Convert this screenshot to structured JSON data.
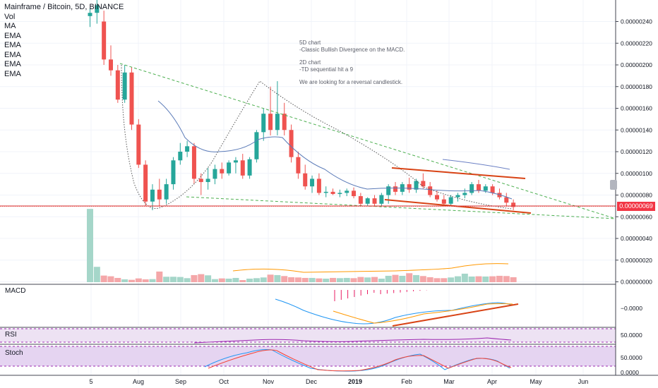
{
  "legend": {
    "title": "Mainframe / Bitcoin, 5D, BINANCE",
    "indicators": [
      "Vol",
      "MA",
      "EMA",
      "EMA",
      "EMA",
      "EMA",
      "EMA"
    ]
  },
  "annotation": {
    "line1": "5D chart",
    "line2": "-Classic Bullish Divergence on the MACD.",
    "line3": "2D chart",
    "line4": "-TD sequential hit a 9",
    "line5": "We are looking for a reversal candlestick."
  },
  "panes": {
    "macd": "MACD",
    "rsi": "RSI",
    "stoch": "Stoch"
  },
  "price_axis": {
    "ticks": [
      "0.00000240",
      "0.00000220",
      "0.00000200",
      "0.00000180",
      "0.00000160",
      "0.00000140",
      "0.00000120",
      "0.00000100",
      "0.00000080",
      "0.00000060",
      "0.00000040",
      "0.00000020",
      "0.00000000"
    ],
    "last_price": "0.00000069",
    "macd_tick": "−0.0000",
    "rsi_tick": "50.0000",
    "stoch_ticks": [
      "50.0000",
      "0.0000"
    ]
  },
  "time_axis": [
    "5",
    "Aug",
    "Sep",
    "Oct",
    "Nov",
    "Dec",
    "2019",
    "Feb",
    "Mar",
    "Apr",
    "May",
    "Jun"
  ],
  "colors": {
    "up": "#26a69a",
    "down": "#ef5350",
    "trend_green": "#4caf50",
    "trend_red": "#d84315",
    "ma_blue": "#2962ff",
    "pane_fill": "#e1bee7"
  },
  "chart_data": {
    "type": "candlestick",
    "title": "Mainframe / Bitcoin, 5D, BINANCE",
    "ylim": [
      0,
      2.5e-06
    ],
    "last_price": 6.9e-07,
    "candles": [
      {
        "o": 245,
        "h": 252,
        "l": 235,
        "c": 248
      },
      {
        "o": 248,
        "h": 260,
        "l": 238,
        "c": 255
      },
      {
        "o": 240,
        "h": 250,
        "l": 200,
        "c": 205
      },
      {
        "o": 205,
        "h": 218,
        "l": 190,
        "c": 195
      },
      {
        "o": 195,
        "h": 200,
        "l": 165,
        "c": 168
      },
      {
        "o": 168,
        "h": 200,
        "l": 165,
        "c": 193
      },
      {
        "o": 193,
        "h": 198,
        "l": 140,
        "c": 145
      },
      {
        "o": 145,
        "h": 150,
        "l": 105,
        "c": 108
      },
      {
        "o": 108,
        "h": 112,
        "l": 70,
        "c": 74
      },
      {
        "o": 74,
        "h": 90,
        "l": 66,
        "c": 85
      },
      {
        "o": 85,
        "h": 95,
        "l": 70,
        "c": 76
      },
      {
        "o": 76,
        "h": 95,
        "l": 72,
        "c": 90
      },
      {
        "o": 90,
        "h": 115,
        "l": 85,
        "c": 112
      },
      {
        "o": 112,
        "h": 128,
        "l": 108,
        "c": 120
      },
      {
        "o": 120,
        "h": 130,
        "l": 115,
        "c": 125
      },
      {
        "o": 125,
        "h": 128,
        "l": 90,
        "c": 95
      },
      {
        "o": 95,
        "h": 100,
        "l": 80,
        "c": 92
      },
      {
        "o": 92,
        "h": 105,
        "l": 85,
        "c": 95
      },
      {
        "o": 95,
        "h": 108,
        "l": 90,
        "c": 104
      },
      {
        "o": 104,
        "h": 110,
        "l": 95,
        "c": 100
      },
      {
        "o": 100,
        "h": 112,
        "l": 98,
        "c": 110
      },
      {
        "o": 110,
        "h": 115,
        "l": 100,
        "c": 112
      },
      {
        "o": 112,
        "h": 118,
        "l": 95,
        "c": 98
      },
      {
        "o": 98,
        "h": 115,
        "l": 95,
        "c": 113
      },
      {
        "o": 113,
        "h": 140,
        "l": 110,
        "c": 138
      },
      {
        "o": 138,
        "h": 160,
        "l": 130,
        "c": 155
      },
      {
        "o": 155,
        "h": 180,
        "l": 135,
        "c": 140
      },
      {
        "o": 140,
        "h": 185,
        "l": 135,
        "c": 155
      },
      {
        "o": 155,
        "h": 165,
        "l": 135,
        "c": 140
      },
      {
        "o": 140,
        "h": 145,
        "l": 110,
        "c": 115
      },
      {
        "o": 115,
        "h": 120,
        "l": 95,
        "c": 100
      },
      {
        "o": 100,
        "h": 108,
        "l": 85,
        "c": 88
      },
      {
        "o": 88,
        "h": 98,
        "l": 82,
        "c": 95
      },
      {
        "o": 95,
        "h": 100,
        "l": 80,
        "c": 82
      },
      {
        "o": 82,
        "h": 88,
        "l": 78,
        "c": 83
      },
      {
        "o": 83,
        "h": 86,
        "l": 80,
        "c": 81
      },
      {
        "o": 81,
        "h": 85,
        "l": 78,
        "c": 82
      },
      {
        "o": 82,
        "h": 86,
        "l": 79,
        "c": 84
      },
      {
        "o": 84,
        "h": 87,
        "l": 77,
        "c": 79
      },
      {
        "o": 79,
        "h": 82,
        "l": 70,
        "c": 72
      },
      {
        "o": 72,
        "h": 78,
        "l": 70,
        "c": 77
      },
      {
        "o": 77,
        "h": 80,
        "l": 70,
        "c": 72
      },
      {
        "o": 72,
        "h": 82,
        "l": 70,
        "c": 80
      },
      {
        "o": 80,
        "h": 90,
        "l": 72,
        "c": 88
      },
      {
        "o": 88,
        "h": 92,
        "l": 80,
        "c": 83
      },
      {
        "o": 83,
        "h": 92,
        "l": 80,
        "c": 90
      },
      {
        "o": 90,
        "h": 96,
        "l": 82,
        "c": 85
      },
      {
        "o": 85,
        "h": 95,
        "l": 82,
        "c": 93
      },
      {
        "o": 93,
        "h": 100,
        "l": 86,
        "c": 88
      },
      {
        "o": 88,
        "h": 92,
        "l": 78,
        "c": 80
      },
      {
        "o": 80,
        "h": 84,
        "l": 74,
        "c": 76
      },
      {
        "o": 76,
        "h": 80,
        "l": 70,
        "c": 72
      },
      {
        "o": 72,
        "h": 80,
        "l": 70,
        "c": 78
      },
      {
        "o": 78,
        "h": 82,
        "l": 74,
        "c": 80
      },
      {
        "o": 80,
        "h": 86,
        "l": 77,
        "c": 82
      },
      {
        "o": 82,
        "h": 92,
        "l": 80,
        "c": 90
      },
      {
        "o": 90,
        "h": 94,
        "l": 82,
        "c": 84
      },
      {
        "o": 84,
        "h": 90,
        "l": 82,
        "c": 88
      },
      {
        "o": 88,
        "h": 90,
        "l": 80,
        "c": 82
      },
      {
        "o": 82,
        "h": 86,
        "l": 76,
        "c": 78
      },
      {
        "o": 78,
        "h": 82,
        "l": 70,
        "c": 73
      },
      {
        "o": 73,
        "h": 76,
        "l": 66,
        "c": 69
      }
    ],
    "volume": [
      310,
      65,
      28,
      25,
      18,
      12,
      10,
      16,
      12,
      13,
      45,
      23,
      23,
      22,
      17,
      30,
      34,
      29,
      13,
      16,
      15,
      18,
      9,
      15,
      17,
      20,
      32,
      30,
      26,
      21,
      20,
      18,
      18,
      16,
      15,
      18,
      17,
      18,
      17,
      22,
      20,
      22,
      15,
      27,
      31,
      27,
      38,
      30,
      26,
      21,
      17,
      17,
      20,
      25,
      36,
      24,
      25,
      24,
      25,
      27,
      26,
      21
    ],
    "macd": {
      "histogram_sign": "negative turning positive",
      "ytick": "−0.0000"
    },
    "rsi": {
      "ytick": 50
    },
    "stoch": {
      "yticks": [
        50,
        0
      ]
    }
  }
}
